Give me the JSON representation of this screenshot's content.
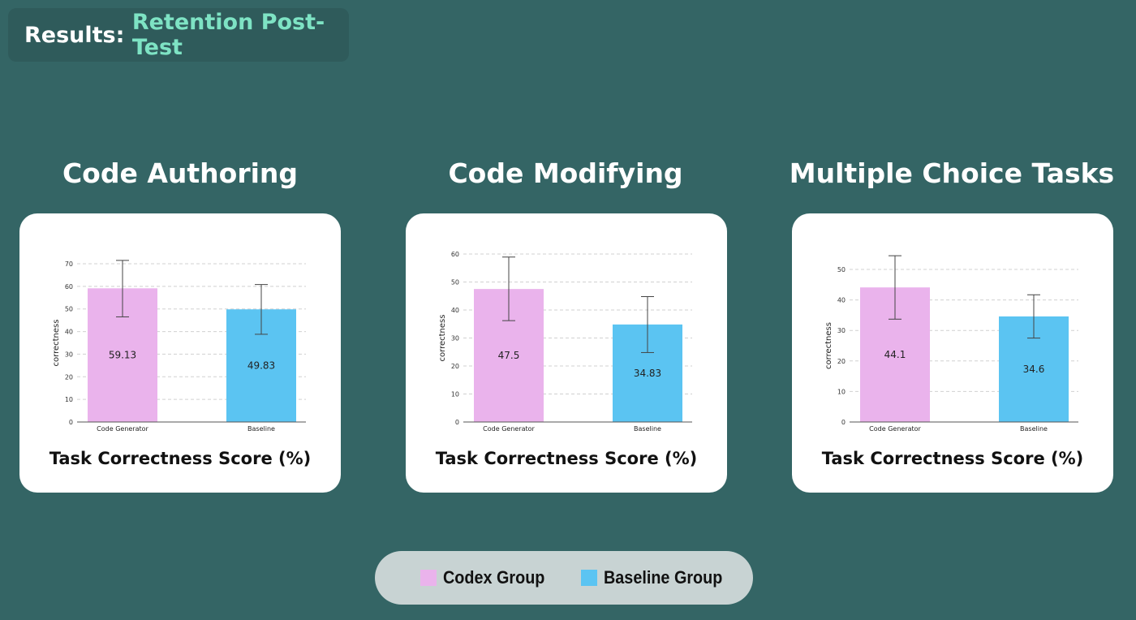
{
  "header": {
    "prefix": "Results: ",
    "accent": "Retention Post-Test"
  },
  "panels": [
    {
      "title": "Code Authoring",
      "caption": "Task Correctness Score (%)"
    },
    {
      "title": "Code Modifying",
      "caption": "Task Correctness Score (%)"
    },
    {
      "title": "Multiple Choice Tasks",
      "caption": "Task Correctness Score (%)"
    }
  ],
  "legend": {
    "items": [
      {
        "label": "Codex Group",
        "color": "#eab3ec"
      },
      {
        "label": "Baseline Group",
        "color": "#5bc4f2"
      }
    ]
  },
  "colors": {
    "background": "#346565",
    "accent": "#7ee3c4",
    "codex": "#eab3ec",
    "baseline": "#5bc4f2"
  },
  "chart_data": [
    {
      "type": "bar",
      "title": "Code Authoring",
      "categories": [
        "Code Generator",
        "Baseline"
      ],
      "values": [
        59.13,
        49.83
      ],
      "error_low": [
        46.5,
        38.8
      ],
      "error_high": [
        71.5,
        60.8
      ],
      "data_labels": [
        "59.13",
        "49.83"
      ],
      "ylabel": "correctness",
      "xlabel": "",
      "ylim": [
        0,
        70
      ],
      "yticks": [
        0,
        10,
        20,
        30,
        40,
        50,
        60,
        70
      ],
      "grid": true
    },
    {
      "type": "bar",
      "title": "Code Modifying",
      "categories": [
        "Code Generator",
        "Baseline"
      ],
      "values": [
        47.5,
        34.83
      ],
      "error_low": [
        36.2,
        24.8
      ],
      "error_high": [
        58.9,
        44.8
      ],
      "data_labels": [
        "47.5",
        "34.83"
      ],
      "ylabel": "correctness",
      "xlabel": "",
      "ylim": [
        0,
        60
      ],
      "yticks": [
        0,
        10,
        20,
        30,
        40,
        50,
        60
      ],
      "grid": true
    },
    {
      "type": "bar",
      "title": "Multiple Choice Tasks",
      "categories": [
        "Code Generator",
        "Baseline"
      ],
      "values": [
        44.1,
        34.6
      ],
      "error_low": [
        33.7,
        27.5
      ],
      "error_high": [
        54.5,
        41.7
      ],
      "data_labels": [
        "44.1",
        "34.6"
      ],
      "ylabel": "correctness",
      "xlabel": "",
      "ylim": [
        0,
        50
      ],
      "yticks": [
        0,
        10,
        20,
        30,
        40,
        50
      ],
      "grid": true
    }
  ]
}
